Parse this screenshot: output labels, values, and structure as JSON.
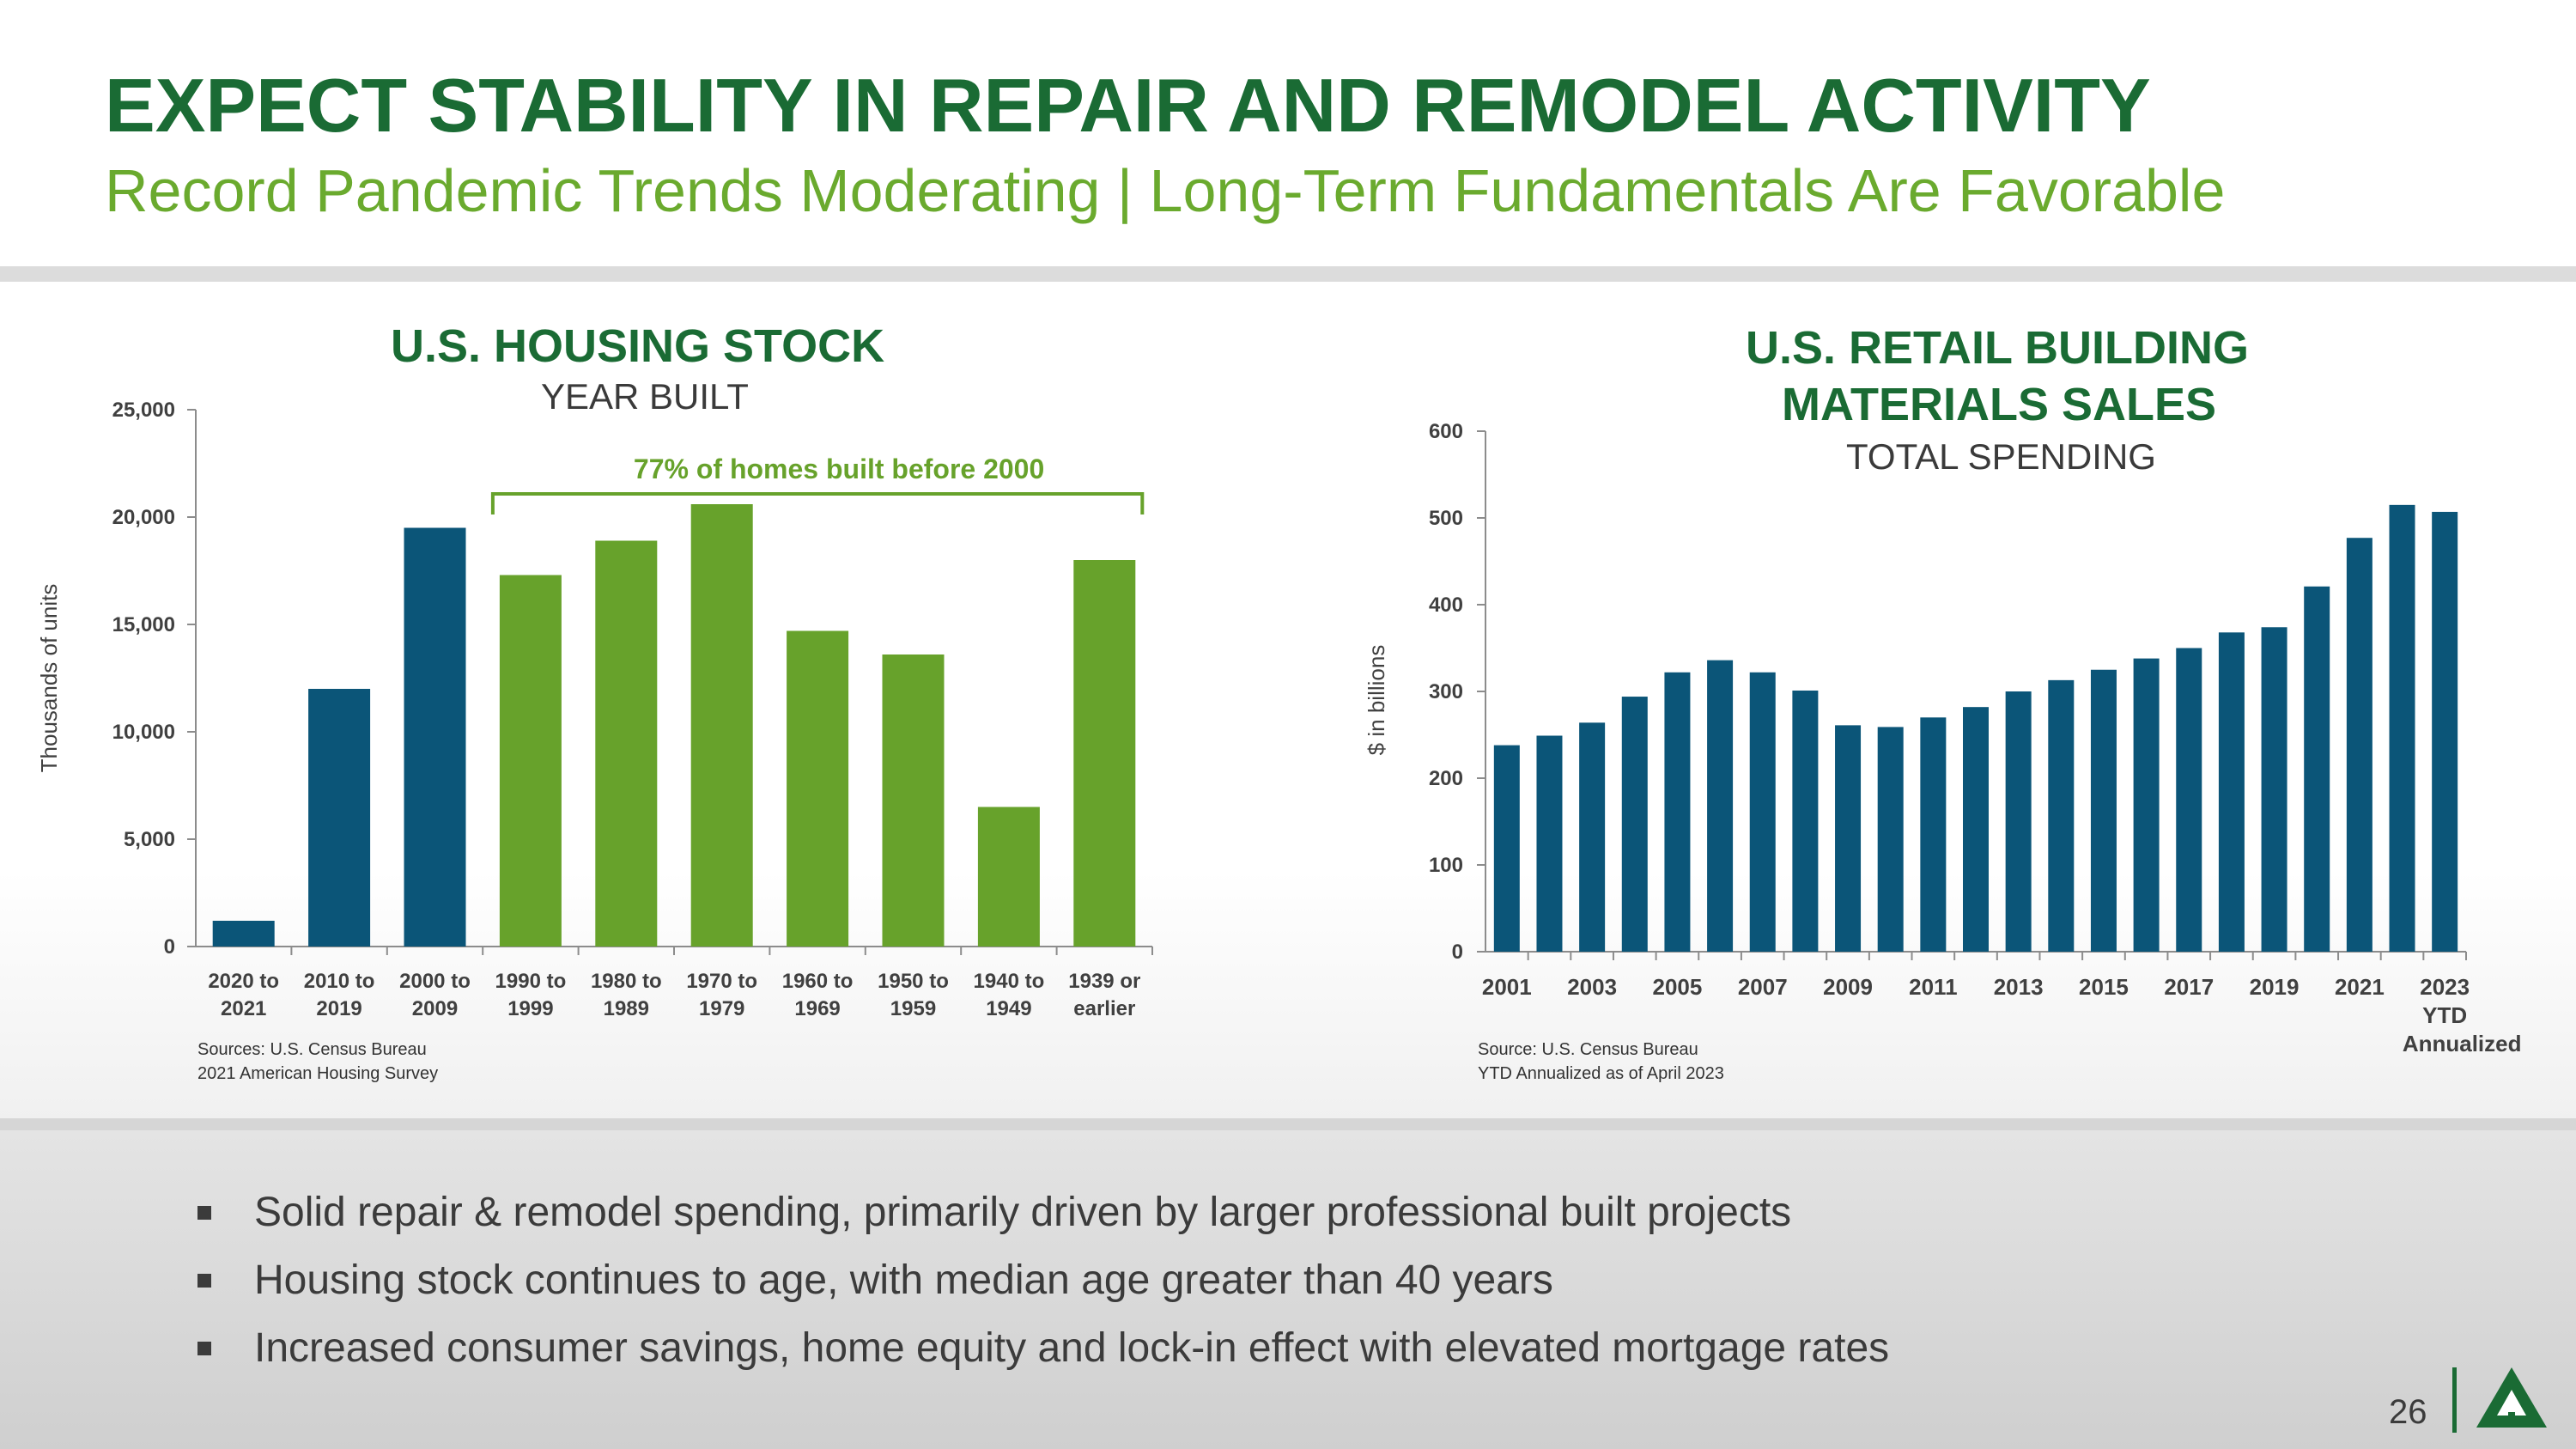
{
  "header": {
    "title": "EXPECT STABILITY IN REPAIR AND REMODEL ACTIVITY",
    "subtitle": "Record Pandemic Trends Moderating | Long-Term Fundamentals Are Favorable"
  },
  "colors": {
    "title_green": "#1a6b34",
    "subtitle_green": "#6aaa2e",
    "bar_blue": "#0b5578",
    "bar_green": "#67a22b"
  },
  "chart_data": [
    {
      "type": "bar",
      "title": "U.S. HOUSING STOCK",
      "subtitle": "YEAR BUILT",
      "xlabel": "",
      "ylabel": "Thousands of units",
      "ylim": [
        0,
        25000
      ],
      "yticks": [
        "0",
        "5,000",
        "10,000",
        "15,000",
        "20,000",
        "25,000"
      ],
      "categories": [
        [
          "2020 to",
          "2021"
        ],
        [
          "2010 to",
          "2019"
        ],
        [
          "2000 to",
          "2009"
        ],
        [
          "1990 to",
          "1999"
        ],
        [
          "1980 to",
          "1989"
        ],
        [
          "1970 to",
          "1979"
        ],
        [
          "1960 to",
          "1969"
        ],
        [
          "1950 to",
          "1959"
        ],
        [
          "1940 to",
          "1949"
        ],
        [
          "1939 or",
          "earlier"
        ]
      ],
      "values": [
        1200,
        12000,
        19500,
        17300,
        18900,
        20600,
        14700,
        13600,
        6500,
        18000
      ],
      "series_groups": [
        "blue",
        "blue",
        "blue",
        "green",
        "green",
        "green",
        "green",
        "green",
        "green",
        "green"
      ],
      "annotation": "77% of homes built before 2000",
      "sources": [
        "Sources: U.S. Census Bureau",
        "2021 American Housing Survey"
      ]
    },
    {
      "type": "bar",
      "title": "U.S. RETAIL BUILDING MATERIALS SALES",
      "title_lines": [
        "U.S. RETAIL BUILDING",
        "MATERIALS SALES"
      ],
      "subtitle": "TOTAL SPENDING",
      "xlabel": "",
      "ylabel": "$ in billions",
      "ylim": [
        0,
        600
      ],
      "yticks": [
        "0",
        "100",
        "200",
        "300",
        "400",
        "500",
        "600"
      ],
      "years": [
        "2001",
        "2002",
        "2003",
        "2004",
        "2005",
        "2006",
        "2007",
        "2008",
        "2009",
        "2010",
        "2011",
        "2012",
        "2013",
        "2014",
        "2015",
        "2016",
        "2017",
        "2018",
        "2019",
        "2020",
        "2021",
        "2022",
        "2023"
      ],
      "tick_labels": [
        [
          "2001"
        ],
        [
          "2003"
        ],
        [
          "2005"
        ],
        [
          "2007"
        ],
        [
          "2009"
        ],
        [
          "2011"
        ],
        [
          "2013"
        ],
        [
          "2015"
        ],
        [
          "2017"
        ],
        [
          "2019"
        ],
        [
          "2021"
        ],
        [
          "2023",
          "YTD",
          "Annualized"
        ]
      ],
      "values": [
        238,
        249,
        264,
        294,
        322,
        336,
        322,
        301,
        261,
        259,
        270,
        282,
        300,
        313,
        325,
        338,
        350,
        368,
        374,
        421,
        477,
        515,
        507
      ],
      "sources": [
        "Source: U.S. Census Bureau",
        "YTD Annualized as of April 2023"
      ]
    }
  ],
  "bullets": [
    "Solid repair & remodel spending, primarily driven by larger professional built projects",
    "Housing stock continues to age, with median age greater than 40 years",
    "Increased consumer savings, home equity and lock-in effect with elevated mortgage rates"
  ],
  "page_number": "26",
  "logo_icon": "tree-logo-icon"
}
